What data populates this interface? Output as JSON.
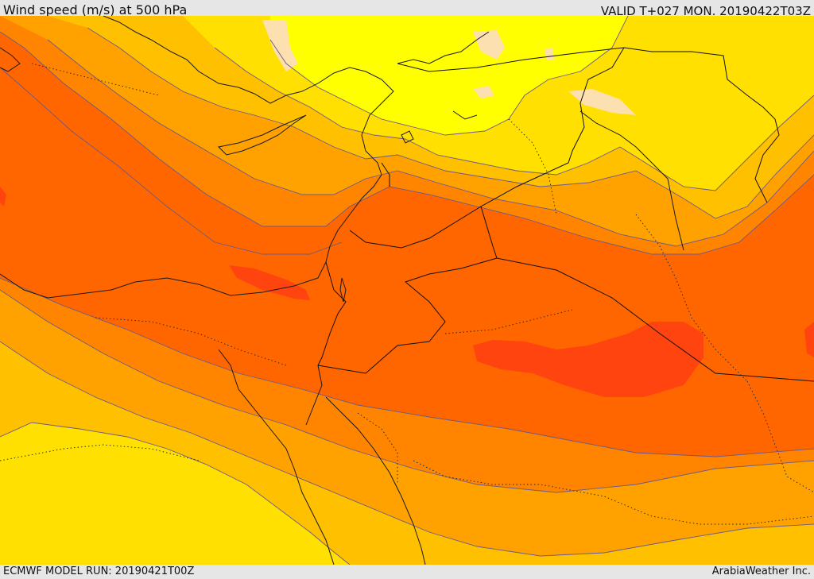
{
  "header": {
    "title": "Wind speed (m/s) at 500 hPa",
    "valid": "VALID T+027 MON. 20190422T03Z"
  },
  "footer": {
    "model_run": "ECMWF MODEL RUN: 20190421T00Z",
    "credit": "ArabiaWeather Inc."
  },
  "colors": {
    "band_pale_yellow": "#ffff00",
    "band_light_yellow": "#ffe000",
    "band_yellow_orange": "#ffc000",
    "band_orange": "#ffa200",
    "band_dark_orange": "#ff8400",
    "band_red_orange": "#ff6600",
    "band_red": "#ff4410",
    "patch_tan": "#fde0b0",
    "contour_line": "#6a5a8a",
    "coastline": "#1a1a1a"
  },
  "map": {
    "region": "Eastern Mediterranean and Middle East",
    "projection_note": "",
    "field": "wind speed"
  }
}
